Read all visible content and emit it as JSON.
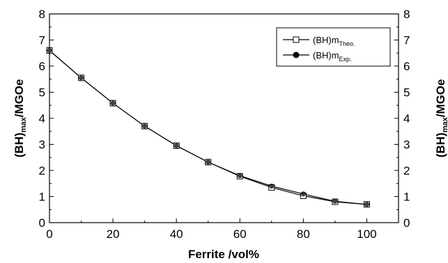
{
  "chart_data": {
    "type": "line",
    "xlabel": "Ferrite /vol%",
    "ylabel": {
      "main": "(BH)",
      "sub": "max",
      "unit": "/MGOe"
    },
    "xlim": [
      0,
      110
    ],
    "ylim": [
      0,
      8
    ],
    "x_ticks": [
      0,
      20,
      40,
      60,
      80,
      100
    ],
    "y_ticks": [
      0,
      1,
      2,
      3,
      4,
      5,
      6,
      7,
      8
    ],
    "grid": false,
    "legend_position": "top-right",
    "series": [
      {
        "name": "(BH)m",
        "name_sub": "Theo.",
        "marker": "open-square",
        "color": "#000000",
        "x": [
          0,
          10,
          20,
          30,
          40,
          50,
          60,
          70,
          80,
          90,
          100
        ],
        "y": [
          6.6,
          5.55,
          4.58,
          3.7,
          2.95,
          2.32,
          1.78,
          1.35,
          1.03,
          0.8,
          0.7
        ]
      },
      {
        "name": "(BH)m",
        "name_sub": "Exp.",
        "marker": "filled-circle",
        "color": "#000000",
        "x": [
          0,
          10,
          20,
          30,
          40,
          50,
          60,
          70,
          80,
          90,
          100
        ],
        "y": [
          6.6,
          5.55,
          4.58,
          3.7,
          2.95,
          2.32,
          1.8,
          1.4,
          1.1,
          0.82,
          0.7
        ]
      }
    ]
  }
}
